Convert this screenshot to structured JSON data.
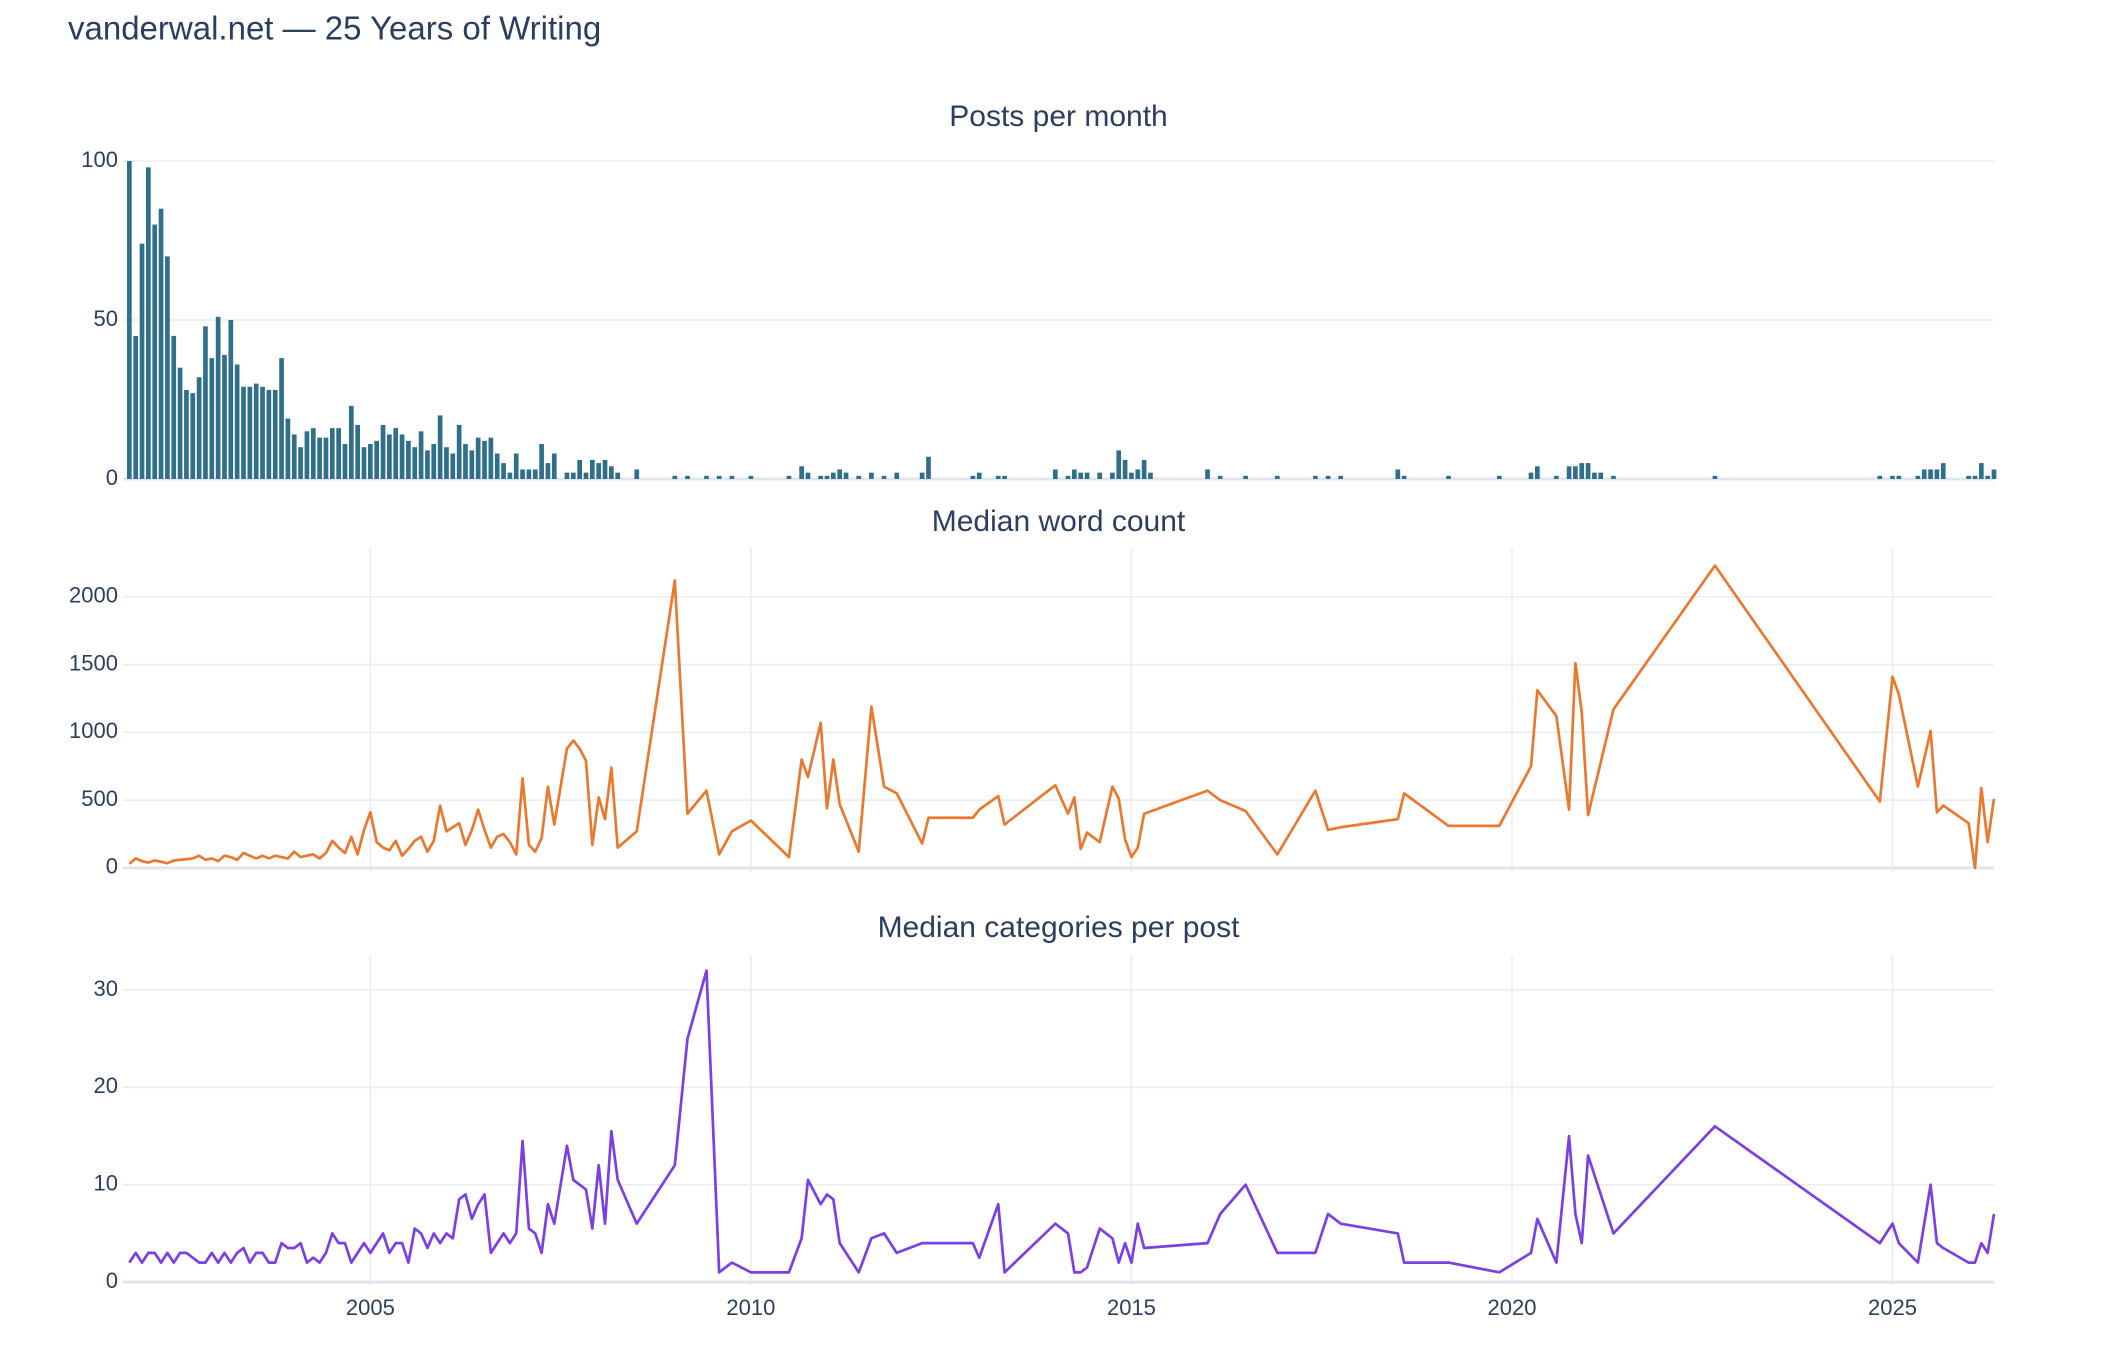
{
  "title": "vanderwal.net — 25 Years of Writing",
  "chart_data": [
    {
      "type": "bar",
      "title": "Posts per month",
      "color": "#306f8a",
      "grid": true,
      "xlim": [
        "2001-10",
        "2026-05"
      ],
      "ylim": [
        0,
        100
      ],
      "yticks": [
        0,
        50,
        100
      ],
      "x": [
        "2001-11",
        "2001-12",
        "2002-01",
        "2002-02",
        "2002-03",
        "2002-04",
        "2002-05",
        "2002-06",
        "2002-07",
        "2002-08",
        "2002-09",
        "2002-10",
        "2002-11",
        "2002-12",
        "2003-01",
        "2003-02",
        "2003-03",
        "2003-04",
        "2003-05",
        "2003-06",
        "2003-07",
        "2003-08",
        "2003-09",
        "2003-10",
        "2003-11",
        "2003-12",
        "2004-01",
        "2004-02",
        "2004-03",
        "2004-04",
        "2004-05",
        "2004-06",
        "2004-07",
        "2004-08",
        "2004-09",
        "2004-10",
        "2004-11",
        "2004-12",
        "2005-01",
        "2005-02",
        "2005-03",
        "2005-04",
        "2005-05",
        "2005-06",
        "2005-07",
        "2005-08",
        "2005-09",
        "2005-10",
        "2005-11",
        "2005-12",
        "2006-01",
        "2006-02",
        "2006-03",
        "2006-04",
        "2006-05",
        "2006-06",
        "2006-07",
        "2006-08",
        "2006-09",
        "2006-10",
        "2006-11",
        "2006-12",
        "2007-01",
        "2007-02",
        "2007-03",
        "2007-04",
        "2007-05",
        "2007-06",
        "2007-07",
        "2007-08",
        "2007-09",
        "2007-10",
        "2007-11",
        "2007-12",
        "2008-01",
        "2008-02",
        "2008-03",
        "2008-04",
        "2008-05",
        "2008-06",
        "2008-07",
        "2009-01",
        "2009-03",
        "2009-06",
        "2009-08",
        "2009-10",
        "2010-01",
        "2010-07",
        "2010-09",
        "2010-10",
        "2010-12",
        "2011-01",
        "2011-02",
        "2011-03",
        "2011-04",
        "2011-06",
        "2011-08",
        "2011-10",
        "2011-12",
        "2012-04",
        "2012-05",
        "2012-12",
        "2013-01",
        "2013-04",
        "2013-05",
        "2014-01",
        "2014-03",
        "2014-04",
        "2014-05",
        "2014-06",
        "2014-08",
        "2014-10",
        "2014-11",
        "2014-12",
        "2015-01",
        "2015-02",
        "2015-03",
        "2015-04",
        "2016-01",
        "2016-03",
        "2016-07",
        "2016-12",
        "2017-06",
        "2017-08",
        "2017-10",
        "2018-07",
        "2018-08",
        "2019-03",
        "2019-11",
        "2020-04",
        "2020-05",
        "2020-08",
        "2020-10",
        "2020-11",
        "2020-12",
        "2021-01",
        "2021-02",
        "2021-03",
        "2021-05",
        "2022-09",
        "2024-11",
        "2025-01",
        "2025-02",
        "2025-05",
        "2025-06",
        "2025-07",
        "2025-08",
        "2025-09",
        "2026-01",
        "2026-02",
        "2026-03",
        "2026-04",
        "2026-05"
      ],
      "values": [
        100,
        45,
        74,
        98,
        80,
        85,
        70,
        45,
        35,
        28,
        27,
        32,
        48,
        38,
        51,
        39,
        50,
        36,
        29,
        29,
        30,
        29,
        28,
        28,
        38,
        19,
        14,
        10,
        15,
        16,
        13,
        13,
        16,
        16,
        11,
        23,
        17,
        10,
        11,
        12,
        17,
        14,
        16,
        14,
        12,
        10,
        15,
        9,
        11,
        20,
        10,
        8,
        17,
        11,
        9,
        13,
        12,
        13,
        8,
        5,
        2,
        8,
        3,
        3,
        3,
        11,
        5,
        8,
        0,
        2,
        2,
        6,
        2,
        6,
        5,
        6,
        4,
        2,
        0,
        0,
        3,
        1,
        1,
        1,
        1,
        1,
        1,
        1,
        4,
        2,
        1,
        1,
        2,
        3,
        2,
        1,
        2,
        1,
        2,
        2,
        7,
        1,
        2,
        1,
        1,
        3,
        1,
        3,
        2,
        2,
        2,
        2,
        9,
        6,
        2,
        3,
        6,
        2,
        3,
        1,
        1,
        1,
        1,
        1,
        1,
        3,
        1,
        1,
        1,
        2,
        4,
        1,
        4,
        4,
        5,
        5,
        2,
        2,
        1,
        1,
        1,
        1,
        1,
        1,
        3,
        3,
        3,
        5,
        1,
        1,
        5,
        1,
        3
      ]
    },
    {
      "type": "line",
      "title": "Median word count",
      "color": "#e8792f",
      "grid": true,
      "xlim": [
        "2001-10",
        "2026-05"
      ],
      "ylim": [
        -30,
        2360
      ],
      "yticks": [
        0,
        500,
        1000,
        1500,
        2000
      ],
      "x": [
        "2001-11",
        "2001-12",
        "2002-01",
        "2002-02",
        "2002-03",
        "2002-04",
        "2002-05",
        "2002-06",
        "2002-07",
        "2002-08",
        "2002-09",
        "2002-10",
        "2002-11",
        "2002-12",
        "2003-01",
        "2003-02",
        "2003-03",
        "2003-04",
        "2003-05",
        "2003-06",
        "2003-07",
        "2003-08",
        "2003-09",
        "2003-10",
        "2003-11",
        "2003-12",
        "2004-01",
        "2004-02",
        "2004-03",
        "2004-04",
        "2004-05",
        "2004-06",
        "2004-07",
        "2004-08",
        "2004-09",
        "2004-10",
        "2004-11",
        "2004-12",
        "2005-01",
        "2005-02",
        "2005-03",
        "2005-04",
        "2005-05",
        "2005-06",
        "2005-07",
        "2005-08",
        "2005-09",
        "2005-10",
        "2005-11",
        "2005-12",
        "2006-01",
        "2006-02",
        "2006-03",
        "2006-04",
        "2006-05",
        "2006-06",
        "2006-07",
        "2006-08",
        "2006-09",
        "2006-10",
        "2006-11",
        "2006-12",
        "2007-01",
        "2007-02",
        "2007-03",
        "2007-04",
        "2007-05",
        "2007-06",
        "2007-08",
        "2007-09",
        "2007-10",
        "2007-11",
        "2007-12",
        "2008-01",
        "2008-02",
        "2008-03",
        "2008-04",
        "2008-07",
        "2009-01",
        "2009-03",
        "2009-06",
        "2009-08",
        "2009-10",
        "2010-01",
        "2010-07",
        "2010-09",
        "2010-10",
        "2010-12",
        "2011-01",
        "2011-02",
        "2011-03",
        "2011-06",
        "2011-08",
        "2011-10",
        "2011-12",
        "2012-04",
        "2012-05",
        "2012-12",
        "2013-01",
        "2013-04",
        "2013-05",
        "2014-01",
        "2014-03",
        "2014-04",
        "2014-05",
        "2014-06",
        "2014-08",
        "2014-10",
        "2014-11",
        "2014-12",
        "2015-01",
        "2015-02",
        "2015-03",
        "2016-01",
        "2016-03",
        "2016-07",
        "2016-12",
        "2017-06",
        "2017-08",
        "2017-10",
        "2018-07",
        "2018-08",
        "2019-03",
        "2019-11",
        "2020-04",
        "2020-05",
        "2020-08",
        "2020-10",
        "2020-11",
        "2020-12",
        "2021-01",
        "2021-05",
        "2022-09",
        "2024-11",
        "2025-01",
        "2025-02",
        "2025-05",
        "2025-07",
        "2025-08",
        "2025-09",
        "2026-01",
        "2026-02",
        "2026-03",
        "2026-04",
        "2026-05"
      ],
      "values": [
        30,
        70,
        50,
        40,
        55,
        45,
        35,
        55,
        60,
        65,
        70,
        90,
        60,
        70,
        50,
        90,
        80,
        60,
        110,
        90,
        70,
        90,
        70,
        90,
        80,
        70,
        120,
        80,
        90,
        100,
        70,
        110,
        200,
        150,
        110,
        230,
        100,
        280,
        410,
        190,
        150,
        130,
        200,
        90,
        140,
        200,
        230,
        120,
        200,
        460,
        270,
        300,
        330,
        170,
        280,
        430,
        280,
        150,
        230,
        250,
        190,
        100,
        660,
        170,
        120,
        220,
        600,
        320,
        880,
        940,
        880,
        790,
        170,
        520,
        360,
        740,
        150,
        270,
        2120,
        400,
        570,
        100,
        270,
        350,
        80,
        800,
        670,
        1070,
        440,
        800,
        470,
        120,
        1190,
        600,
        550,
        180,
        370,
        370,
        430,
        530,
        320,
        610,
        400,
        520,
        140,
        260,
        190,
        600,
        510,
        210,
        80,
        150,
        400,
        570,
        500,
        420,
        100,
        570,
        280,
        300,
        360,
        550,
        310,
        310,
        750,
        1310,
        1120,
        430,
        1510,
        1150,
        390,
        1170,
        2230,
        490,
        1410,
        1280,
        600,
        1010,
        410,
        460,
        330,
        0,
        590,
        190,
        510
      ]
    },
    {
      "type": "line",
      "title": "Median categories per post",
      "color": "#7b3fe4",
      "grid": true,
      "xlim": [
        "2001-10",
        "2026-05"
      ],
      "ylim": [
        -0.3,
        33.6
      ],
      "yticks": [
        0,
        10,
        20,
        30
      ],
      "xticks": [
        {
          "value": "2005-01",
          "label": "2005"
        },
        {
          "value": "2010-01",
          "label": "2010"
        },
        {
          "value": "2015-01",
          "label": "2015"
        },
        {
          "value": "2020-01",
          "label": "2020"
        },
        {
          "value": "2025-01",
          "label": "2025"
        }
      ],
      "x": [
        "2001-11",
        "2001-12",
        "2002-01",
        "2002-02",
        "2002-03",
        "2002-04",
        "2002-05",
        "2002-06",
        "2002-07",
        "2002-08",
        "2002-09",
        "2002-10",
        "2002-11",
        "2002-12",
        "2003-01",
        "2003-02",
        "2003-03",
        "2003-04",
        "2003-05",
        "2003-06",
        "2003-07",
        "2003-08",
        "2003-09",
        "2003-10",
        "2003-11",
        "2003-12",
        "2004-01",
        "2004-02",
        "2004-03",
        "2004-04",
        "2004-05",
        "2004-06",
        "2004-07",
        "2004-08",
        "2004-09",
        "2004-10",
        "2004-11",
        "2004-12",
        "2005-01",
        "2005-02",
        "2005-03",
        "2005-04",
        "2005-05",
        "2005-06",
        "2005-07",
        "2005-08",
        "2005-09",
        "2005-10",
        "2005-11",
        "2005-12",
        "2006-01",
        "2006-02",
        "2006-03",
        "2006-04",
        "2006-05",
        "2006-06",
        "2006-07",
        "2006-08",
        "2006-09",
        "2006-10",
        "2006-11",
        "2006-12",
        "2007-01",
        "2007-02",
        "2007-03",
        "2007-04",
        "2007-05",
        "2007-06",
        "2007-08",
        "2007-09",
        "2007-10",
        "2007-11",
        "2007-12",
        "2008-01",
        "2008-02",
        "2008-03",
        "2008-04",
        "2008-07",
        "2009-01",
        "2009-03",
        "2009-06",
        "2009-08",
        "2009-10",
        "2010-01",
        "2010-07",
        "2010-09",
        "2010-10",
        "2010-12",
        "2011-01",
        "2011-02",
        "2011-03",
        "2011-06",
        "2011-08",
        "2011-10",
        "2011-12",
        "2012-04",
        "2012-05",
        "2012-12",
        "2013-01",
        "2013-04",
        "2013-05",
        "2014-01",
        "2014-03",
        "2014-04",
        "2014-05",
        "2014-06",
        "2014-08",
        "2014-10",
        "2014-11",
        "2014-12",
        "2015-01",
        "2015-02",
        "2015-03",
        "2016-01",
        "2016-03",
        "2016-07",
        "2016-12",
        "2017-06",
        "2017-08",
        "2017-10",
        "2018-07",
        "2018-08",
        "2019-03",
        "2019-11",
        "2020-04",
        "2020-05",
        "2020-08",
        "2020-10",
        "2020-11",
        "2020-12",
        "2021-01",
        "2021-05",
        "2022-09",
        "2024-11",
        "2025-01",
        "2025-02",
        "2025-05",
        "2025-07",
        "2025-08",
        "2025-09",
        "2026-01",
        "2026-02",
        "2026-03",
        "2026-04",
        "2026-05"
      ],
      "values": [
        2,
        3,
        2,
        3,
        3,
        2,
        3,
        2,
        3,
        3,
        2.5,
        2,
        2,
        3,
        2,
        3,
        2,
        3,
        3.5,
        2,
        3,
        3,
        2,
        2,
        4,
        3.5,
        3.5,
        4,
        2,
        2.5,
        2,
        3,
        5,
        4,
        4,
        2,
        3,
        4,
        3,
        4,
        5,
        3,
        4,
        4,
        2,
        5.5,
        5,
        3.5,
        5,
        4,
        5,
        4.5,
        8.5,
        9,
        6.5,
        8,
        9,
        3,
        4,
        5,
        4,
        5,
        14.5,
        5.5,
        5,
        3,
        8,
        6,
        14,
        10.5,
        10,
        9.5,
        5.5,
        12,
        6,
        15.5,
        10.5,
        6,
        12,
        25,
        32,
        1,
        2,
        1,
        1,
        4.5,
        10.5,
        8,
        9,
        8.5,
        4,
        1,
        4.5,
        5,
        3,
        4,
        4,
        4,
        2.5,
        8,
        1,
        6,
        5,
        1,
        1,
        1.5,
        5.5,
        4.5,
        2,
        4,
        2,
        6,
        3.5,
        4,
        7,
        10,
        3,
        3,
        7,
        6,
        5,
        2,
        2,
        1,
        3,
        6.5,
        2,
        15,
        7,
        4,
        13,
        5,
        16,
        4,
        6,
        4,
        2,
        10,
        4,
        3.5,
        2,
        2,
        4,
        3,
        7
      ]
    }
  ]
}
